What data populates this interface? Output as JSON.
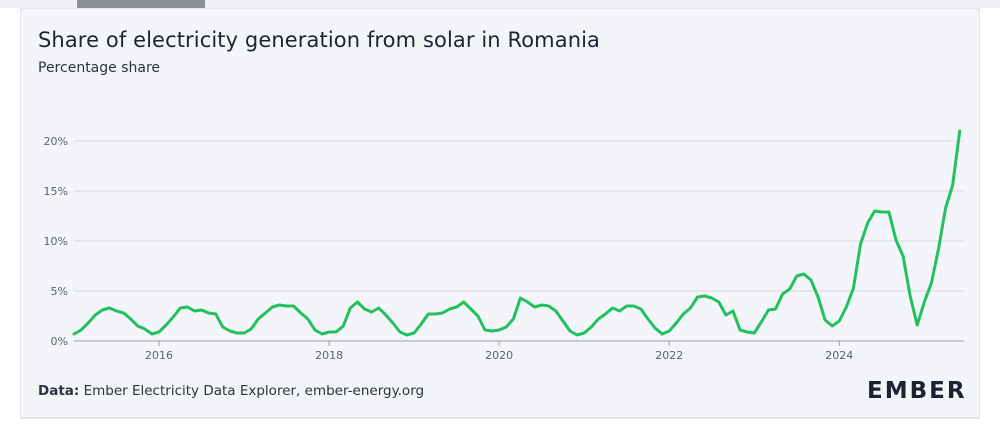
{
  "header": {
    "title": "Share of electricity generation from solar in Romania",
    "subtitle": "Percentage share"
  },
  "footer": {
    "source_label": "Data:",
    "source_text": " Ember Electricity Data Explorer, ember-energy.org",
    "logo_text": "EMBER"
  },
  "colors": {
    "line": "#23c15e",
    "grid": "#d6d9e0",
    "card_bg": "#f4f5f9"
  },
  "chart_data": {
    "type": "line",
    "title": "Share of electricity generation from solar in Romania",
    "subtitle": "Percentage share",
    "ylim": [
      0,
      22
    ],
    "y_ticks": [
      0,
      5,
      10,
      15,
      20
    ],
    "y_tick_labels": [
      "0%",
      "5%",
      "10%",
      "15%",
      "20%"
    ],
    "x_ticks": [
      2016,
      2018,
      2020,
      2022,
      2024
    ],
    "x_tick_labels": [
      "2016",
      "2018",
      "2020",
      "2022",
      "2024"
    ],
    "x_unit": "month",
    "grid": true,
    "series": [
      {
        "values": [
          [
            "2015-01",
            0.7
          ],
          [
            "2015-02",
            1.1
          ],
          [
            "2015-03",
            1.8
          ],
          [
            "2015-04",
            2.6
          ],
          [
            "2015-05",
            3.1
          ],
          [
            "2015-06",
            3.3
          ],
          [
            "2015-07",
            3.0
          ],
          [
            "2015-08",
            2.8
          ],
          [
            "2015-09",
            2.2
          ],
          [
            "2015-10",
            1.5
          ],
          [
            "2015-11",
            1.2
          ],
          [
            "2015-12",
            0.7
          ],
          [
            "2016-01",
            0.9
          ],
          [
            "2016-02",
            1.6
          ],
          [
            "2016-03",
            2.4
          ],
          [
            "2016-04",
            3.3
          ],
          [
            "2016-05",
            3.4
          ],
          [
            "2016-06",
            3.0
          ],
          [
            "2016-07",
            3.1
          ],
          [
            "2016-08",
            2.8
          ],
          [
            "2016-09",
            2.7
          ],
          [
            "2016-10",
            1.4
          ],
          [
            "2016-11",
            1.0
          ],
          [
            "2016-12",
            0.8
          ],
          [
            "2017-01",
            0.8
          ],
          [
            "2017-02",
            1.2
          ],
          [
            "2017-03",
            2.2
          ],
          [
            "2017-04",
            2.8
          ],
          [
            "2017-05",
            3.4
          ],
          [
            "2017-06",
            3.6
          ],
          [
            "2017-07",
            3.5
          ],
          [
            "2017-08",
            3.5
          ],
          [
            "2017-09",
            2.8
          ],
          [
            "2017-10",
            2.2
          ],
          [
            "2017-11",
            1.1
          ],
          [
            "2017-12",
            0.7
          ],
          [
            "2018-01",
            0.9
          ],
          [
            "2018-02",
            0.9
          ],
          [
            "2018-03",
            1.5
          ],
          [
            "2018-04",
            3.3
          ],
          [
            "2018-05",
            3.9
          ],
          [
            "2018-06",
            3.2
          ],
          [
            "2018-07",
            2.9
          ],
          [
            "2018-08",
            3.3
          ],
          [
            "2018-09",
            2.6
          ],
          [
            "2018-10",
            1.8
          ],
          [
            "2018-11",
            0.9
          ],
          [
            "2018-12",
            0.6
          ],
          [
            "2019-01",
            0.8
          ],
          [
            "2019-02",
            1.7
          ],
          [
            "2019-03",
            2.7
          ],
          [
            "2019-04",
            2.7
          ],
          [
            "2019-05",
            2.8
          ],
          [
            "2019-06",
            3.2
          ],
          [
            "2019-07",
            3.4
          ],
          [
            "2019-08",
            3.9
          ],
          [
            "2019-09",
            3.2
          ],
          [
            "2019-10",
            2.5
          ],
          [
            "2019-11",
            1.1
          ],
          [
            "2019-12",
            1.0
          ],
          [
            "2020-01",
            1.1
          ],
          [
            "2020-02",
            1.4
          ],
          [
            "2020-03",
            2.2
          ],
          [
            "2020-04",
            4.3
          ],
          [
            "2020-05",
            3.9
          ],
          [
            "2020-06",
            3.4
          ],
          [
            "2020-07",
            3.6
          ],
          [
            "2020-08",
            3.5
          ],
          [
            "2020-09",
            3.0
          ],
          [
            "2020-10",
            2.0
          ],
          [
            "2020-11",
            1.0
          ],
          [
            "2020-12",
            0.6
          ],
          [
            "2021-01",
            0.8
          ],
          [
            "2021-02",
            1.4
          ],
          [
            "2021-03",
            2.2
          ],
          [
            "2021-04",
            2.7
          ],
          [
            "2021-05",
            3.3
          ],
          [
            "2021-06",
            3.0
          ],
          [
            "2021-07",
            3.5
          ],
          [
            "2021-08",
            3.5
          ],
          [
            "2021-09",
            3.2
          ],
          [
            "2021-10",
            2.2
          ],
          [
            "2021-11",
            1.3
          ],
          [
            "2021-12",
            0.7
          ],
          [
            "2022-01",
            1.0
          ],
          [
            "2022-02",
            1.8
          ],
          [
            "2022-03",
            2.7
          ],
          [
            "2022-04",
            3.3
          ],
          [
            "2022-05",
            4.4
          ],
          [
            "2022-06",
            4.5
          ],
          [
            "2022-07",
            4.3
          ],
          [
            "2022-08",
            3.9
          ],
          [
            "2022-09",
            2.6
          ],
          [
            "2022-10",
            3.0
          ],
          [
            "2022-11",
            1.1
          ],
          [
            "2022-12",
            0.9
          ],
          [
            "2023-01",
            0.8
          ],
          [
            "2023-02",
            1.9
          ],
          [
            "2023-03",
            3.1
          ],
          [
            "2023-04",
            3.2
          ],
          [
            "2023-05",
            4.7
          ],
          [
            "2023-06",
            5.2
          ],
          [
            "2023-07",
            6.5
          ],
          [
            "2023-08",
            6.7
          ],
          [
            "2023-09",
            6.1
          ],
          [
            "2023-10",
            4.4
          ],
          [
            "2023-11",
            2.1
          ],
          [
            "2023-12",
            1.5
          ],
          [
            "2024-01",
            2.0
          ],
          [
            "2024-02",
            3.4
          ],
          [
            "2024-03",
            5.3
          ],
          [
            "2024-04",
            9.7
          ],
          [
            "2024-05",
            11.8
          ],
          [
            "2024-06",
            13.0
          ],
          [
            "2024-07",
            12.9
          ],
          [
            "2024-08",
            12.9
          ],
          [
            "2024-09",
            10.1
          ],
          [
            "2024-10",
            8.5
          ],
          [
            "2024-11",
            4.5
          ],
          [
            "2024-12",
            1.6
          ],
          [
            "2025-01",
            3.9
          ],
          [
            "2025-02",
            5.8
          ],
          [
            "2025-03",
            9.2
          ],
          [
            "2025-04",
            13.3
          ],
          [
            "2025-05",
            15.6
          ],
          [
            "2025-06",
            21.0
          ]
        ]
      }
    ]
  }
}
